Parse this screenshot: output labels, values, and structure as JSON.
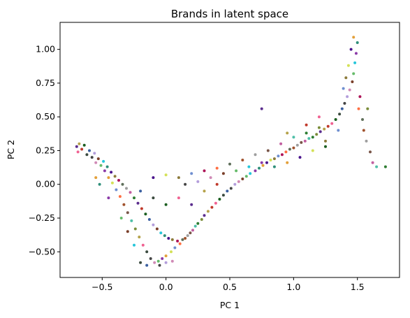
{
  "chart_data": {
    "type": "scatter",
    "title": "Brands in latent space",
    "xlabel": "PC 1",
    "ylabel": "PC 2",
    "xlim": [
      -0.83,
      1.83
    ],
    "ylim": [
      -0.69,
      1.2
    ],
    "xticks": [
      -0.5,
      0.0,
      0.5,
      1.0,
      1.5
    ],
    "xtick_labels": [
      "−0.5",
      "0.0",
      "0.5",
      "1.0",
      "1.5"
    ],
    "yticks": [
      -0.5,
      -0.25,
      0.0,
      0.25,
      0.5,
      0.75,
      1.0
    ],
    "ytick_labels": [
      "−0.50",
      "−0.25",
      "0.00",
      "0.25",
      "0.50",
      "0.75",
      "1.00"
    ],
    "grid": false,
    "legend": "none",
    "marker_size": 2,
    "colors": [
      "#5b2d8e",
      "#8b3aa8",
      "#c25fa0",
      "#d08ab6",
      "#5f6f5a",
      "#3a4a3e",
      "#8c7a3a",
      "#b5a24a",
      "#2f8f7a",
      "#4fbfa8",
      "#7a3f2a",
      "#a0522d",
      "#3b5fa0",
      "#6f8fd0",
      "#c0392b",
      "#e3a03a",
      "#2e7d32",
      "#66bb6a",
      "#9e9e9e",
      "#444444",
      "#ad1457",
      "#f06292",
      "#4a148c",
      "#7b8d3a",
      "#26c6da",
      "#795548",
      "#b39ddb",
      "#ff7043",
      "#1b5e20",
      "#d4e157"
    ],
    "points": [
      [
        -0.7,
        0.28
      ],
      [
        -0.68,
        0.3
      ],
      [
        -0.66,
        0.26
      ],
      [
        -0.69,
        0.24
      ],
      [
        -0.64,
        0.29
      ],
      [
        -0.62,
        0.22
      ],
      [
        -0.6,
        0.25
      ],
      [
        -0.58,
        0.2
      ],
      [
        -0.56,
        0.23
      ],
      [
        -0.55,
        0.16
      ],
      [
        -0.53,
        0.19
      ],
      [
        -0.51,
        0.14
      ],
      [
        -0.49,
        0.17
      ],
      [
        -0.48,
        0.1
      ],
      [
        -0.46,
        0.13
      ],
      [
        -0.45,
        0.05
      ],
      [
        -0.43,
        0.09
      ],
      [
        -0.42,
        0.01
      ],
      [
        -0.4,
        0.06
      ],
      [
        -0.39,
        -0.04
      ],
      [
        -0.37,
        0.03
      ],
      [
        -0.36,
        -0.09
      ],
      [
        -0.34,
        0.0
      ],
      [
        -0.33,
        -0.15
      ],
      [
        -0.31,
        -0.03
      ],
      [
        -0.3,
        -0.21
      ],
      [
        -0.28,
        -0.06
      ],
      [
        -0.27,
        -0.27
      ],
      [
        -0.25,
        -0.1
      ],
      [
        -0.24,
        -0.33
      ],
      [
        -0.22,
        -0.14
      ],
      [
        -0.21,
        -0.39
      ],
      [
        -0.19,
        -0.18
      ],
      [
        -0.18,
        -0.45
      ],
      [
        -0.16,
        -0.22
      ],
      [
        -0.15,
        -0.5
      ],
      [
        -0.13,
        -0.26
      ],
      [
        -0.12,
        -0.55
      ],
      [
        -0.1,
        -0.3
      ],
      [
        -0.09,
        -0.58
      ],
      [
        -0.07,
        -0.33
      ],
      [
        -0.06,
        -0.57
      ],
      [
        -0.04,
        -0.36
      ],
      [
        -0.03,
        -0.55
      ],
      [
        -0.01,
        -0.38
      ],
      [
        0.0,
        -0.53
      ],
      [
        0.02,
        -0.4
      ],
      [
        0.04,
        -0.5
      ],
      [
        0.05,
        -0.41
      ],
      [
        0.07,
        -0.47
      ],
      [
        0.09,
        -0.42
      ],
      [
        0.11,
        -0.44
      ],
      [
        0.13,
        -0.41
      ],
      [
        0.15,
        -0.4
      ],
      [
        0.17,
        -0.38
      ],
      [
        0.19,
        -0.36
      ],
      [
        0.21,
        -0.34
      ],
      [
        0.23,
        -0.31
      ],
      [
        0.25,
        -0.29
      ],
      [
        0.28,
        -0.26
      ],
      [
        0.3,
        -0.23
      ],
      [
        0.33,
        -0.2
      ],
      [
        0.36,
        -0.17
      ],
      [
        0.39,
        -0.14
      ],
      [
        0.42,
        -0.11
      ],
      [
        0.45,
        -0.08
      ],
      [
        0.48,
        -0.05
      ],
      [
        0.51,
        -0.03
      ],
      [
        0.54,
        0.0
      ],
      [
        0.57,
        0.02
      ],
      [
        0.6,
        0.04
      ],
      [
        0.63,
        0.06
      ],
      [
        0.66,
        0.08
      ],
      [
        0.7,
        0.1
      ],
      [
        0.73,
        0.12
      ],
      [
        0.76,
        0.14
      ],
      [
        0.79,
        0.16
      ],
      [
        0.82,
        0.18
      ],
      [
        0.85,
        0.19
      ],
      [
        0.88,
        0.21
      ],
      [
        0.91,
        0.22
      ],
      [
        0.94,
        0.24
      ],
      [
        0.97,
        0.26
      ],
      [
        1.0,
        0.27
      ],
      [
        1.03,
        0.29
      ],
      [
        1.06,
        0.31
      ],
      [
        1.09,
        0.32
      ],
      [
        1.12,
        0.34
      ],
      [
        1.15,
        0.35
      ],
      [
        1.18,
        0.37
      ],
      [
        1.21,
        0.39
      ],
      [
        1.24,
        0.41
      ],
      [
        1.27,
        0.43
      ],
      [
        1.3,
        0.45
      ],
      [
        1.33,
        0.48
      ],
      [
        1.36,
        0.52
      ],
      [
        1.38,
        0.56
      ],
      [
        1.4,
        0.6
      ],
      [
        1.42,
        0.65
      ],
      [
        1.44,
        0.7
      ],
      [
        1.46,
        0.76
      ],
      [
        1.47,
        0.82
      ],
      [
        1.48,
        0.9
      ],
      [
        1.49,
        0.97
      ],
      [
        1.5,
        1.05
      ],
      [
        1.47,
        1.09
      ],
      [
        1.45,
        1.0
      ],
      [
        1.43,
        0.88
      ],
      [
        1.41,
        0.79
      ],
      [
        1.39,
        0.71
      ],
      [
        1.52,
        0.65
      ],
      [
        1.51,
        0.56
      ],
      [
        1.54,
        0.48
      ],
      [
        1.55,
        0.4
      ],
      [
        1.57,
        0.32
      ],
      [
        1.6,
        0.24
      ],
      [
        1.62,
        0.16
      ],
      [
        1.65,
        0.13
      ],
      [
        1.72,
        0.13
      ],
      [
        1.58,
        0.56
      ],
      [
        0.75,
        0.56
      ],
      [
        0.95,
        0.38
      ],
      [
        1.1,
        0.44
      ],
      [
        1.2,
        0.5
      ],
      [
        1.25,
        0.28
      ],
      [
        -0.2,
        -0.58
      ],
      [
        -0.15,
        -0.6
      ],
      [
        -0.05,
        -0.6
      ],
      [
        0.0,
        -0.58
      ],
      [
        0.05,
        -0.57
      ],
      [
        -0.3,
        -0.35
      ],
      [
        -0.35,
        -0.25
      ],
      [
        -0.25,
        -0.45
      ],
      [
        -0.45,
        -0.1
      ],
      [
        -0.52,
        0.0
      ],
      [
        -0.55,
        0.05
      ],
      [
        -0.1,
        0.05
      ],
      [
        0.0,
        0.07
      ],
      [
        0.1,
        0.05
      ],
      [
        0.2,
        0.08
      ],
      [
        0.3,
        0.1
      ],
      [
        0.4,
        0.12
      ],
      [
        0.5,
        0.15
      ],
      [
        0.6,
        0.18
      ],
      [
        0.7,
        0.22
      ],
      [
        0.8,
        0.25
      ],
      [
        0.9,
        0.3
      ],
      [
        1.0,
        0.35
      ],
      [
        1.1,
        0.38
      ],
      [
        1.2,
        0.42
      ],
      [
        0.2,
        -0.15
      ],
      [
        0.3,
        -0.05
      ],
      [
        0.4,
        0.0
      ],
      [
        0.1,
        -0.1
      ],
      [
        0.0,
        -0.15
      ],
      [
        -0.1,
        -0.1
      ],
      [
        -0.2,
        -0.05
      ],
      [
        0.15,
        0.0
      ],
      [
        0.25,
        0.02
      ],
      [
        0.35,
        0.05
      ],
      [
        0.45,
        0.08
      ],
      [
        0.55,
        0.1
      ],
      [
        0.65,
        0.13
      ],
      [
        0.75,
        0.16
      ],
      [
        0.85,
        0.13
      ],
      [
        0.95,
        0.16
      ],
      [
        1.05,
        0.2
      ],
      [
        1.15,
        0.25
      ],
      [
        1.25,
        0.32
      ],
      [
        1.35,
        0.4
      ]
    ]
  }
}
